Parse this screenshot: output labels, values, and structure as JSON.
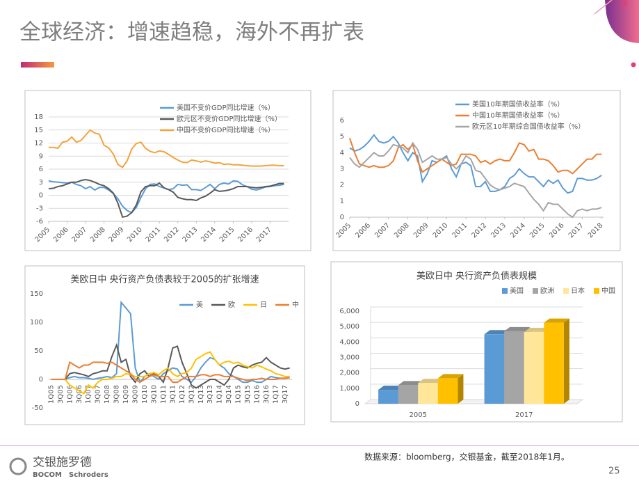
{
  "header": {
    "title": "全球经济：增速趋稳，海外不再扩表"
  },
  "footer": {
    "source": "数据来源：bloomberg，交银基金，截至2018年1月。",
    "page": "25",
    "logo_cn": "交银施罗德",
    "logo_en1": "BOCOM",
    "logo_en2": "Schroders"
  },
  "chart_data": [
    {
      "type": "line",
      "x": [
        2005,
        2005.25,
        2005.5,
        2005.75,
        2006,
        2006.25,
        2006.5,
        2006.75,
        2007,
        2007.25,
        2007.5,
        2007.75,
        2008,
        2008.25,
        2008.5,
        2008.75,
        2009,
        2009.25,
        2009.5,
        2009.75,
        2010,
        2010.25,
        2010.5,
        2010.75,
        2011,
        2011.25,
        2011.5,
        2011.75,
        2012,
        2012.25,
        2012.5,
        2012.75,
        2013,
        2013.25,
        2013.5,
        2013.75,
        2014,
        2014.25,
        2014.5,
        2014.75,
        2015,
        2015.25,
        2015.5,
        2015.75,
        2016,
        2016.25,
        2016.5,
        2016.75,
        2017,
        2017.25,
        2017.5,
        2017.75
      ],
      "xlim": [
        2005,
        2018
      ],
      "xticks": [
        2005,
        2006,
        2007,
        2008,
        2009,
        2010,
        2011,
        2012,
        2013,
        2014,
        2015,
        2016,
        2017
      ],
      "ylim": [
        -6,
        18
      ],
      "yticks": [
        -6,
        -3,
        0,
        3,
        6,
        9,
        12,
        15,
        18
      ],
      "grid": true,
      "series": [
        {
          "name": "美国不变价GDP同比增速（%）",
          "color": "#5b9bd5",
          "values": [
            3.3,
            3.1,
            3.0,
            2.9,
            2.8,
            3.0,
            2.5,
            2.2,
            1.5,
            2.0,
            1.2,
            1.8,
            1.8,
            1.2,
            0.4,
            -0.8,
            -2.5,
            -3.5,
            -4.0,
            -2.8,
            -0.5,
            1.5,
            2.5,
            2.6,
            2.0,
            1.7,
            1.3,
            1.5,
            2.5,
            2.3,
            2.4,
            1.3,
            1.3,
            1.1,
            1.8,
            2.5,
            1.5,
            2.5,
            2.8,
            2.6,
            3.3,
            3.2,
            2.4,
            2.0,
            1.4,
            1.2,
            1.5,
            1.9,
            2.0,
            2.2,
            2.3,
            2.5
          ]
        },
        {
          "name": "欧元区不变价GDP同比增速（%）",
          "color": "#595959",
          "values": [
            1.5,
            1.6,
            2.0,
            2.2,
            2.6,
            3.0,
            3.0,
            3.4,
            3.6,
            3.4,
            3.0,
            2.5,
            2.2,
            1.5,
            0.5,
            -1.8,
            -5.0,
            -4.8,
            -4.0,
            -2.2,
            0.8,
            2.0,
            2.2,
            2.2,
            2.8,
            1.7,
            1.3,
            0.7,
            -0.5,
            -0.8,
            -1.0,
            -1.0,
            -1.2,
            -0.6,
            -0.2,
            0.5,
            1.3,
            0.9,
            1.0,
            1.2,
            1.5,
            2.0,
            2.0,
            2.0,
            1.8,
            1.7,
            1.8,
            2.0,
            2.1,
            2.4,
            2.7,
            2.7
          ]
        },
        {
          "name": "中国不变价GDP同比增速（%）",
          "color": "#f4a23c",
          "values": [
            11.0,
            11.0,
            10.8,
            12.2,
            12.4,
            13.4,
            12.2,
            12.6,
            13.8,
            15.0,
            14.3,
            14.0,
            11.5,
            10.9,
            9.5,
            7.1,
            6.4,
            7.9,
            10.6,
            11.9,
            12.2,
            10.8,
            10.1,
            9.8,
            10.2,
            10.0,
            9.4,
            8.7,
            8.1,
            7.6,
            7.5,
            8.1,
            7.9,
            7.6,
            7.9,
            7.7,
            7.4,
            7.5,
            7.1,
            7.2,
            7.0,
            7.0,
            6.9,
            6.8,
            6.7,
            6.7,
            6.7,
            6.8,
            6.9,
            6.9,
            6.8,
            6.8
          ]
        }
      ]
    },
    {
      "type": "line",
      "x": [
        2005,
        2005.25,
        2005.5,
        2005.75,
        2006,
        2006.25,
        2006.5,
        2006.75,
        2007,
        2007.25,
        2007.5,
        2007.75,
        2008,
        2008.25,
        2008.5,
        2008.75,
        2009,
        2009.25,
        2009.5,
        2009.75,
        2010,
        2010.25,
        2010.5,
        2010.75,
        2011,
        2011.25,
        2011.5,
        2011.75,
        2012,
        2012.25,
        2012.5,
        2012.75,
        2013,
        2013.25,
        2013.5,
        2013.75,
        2014,
        2014.25,
        2014.5,
        2014.75,
        2015,
        2015.25,
        2015.5,
        2015.75,
        2016,
        2016.25,
        2016.5,
        2016.75,
        2017,
        2017.25,
        2017.5,
        2017.75,
        2018
      ],
      "xlim": [
        2005,
        2018.1
      ],
      "xticks": [
        2005,
        2006,
        2007,
        2008,
        2009,
        2010,
        2011,
        2012,
        2013,
        2014,
        2015,
        2016,
        2017,
        2018
      ],
      "ylim": [
        0,
        6
      ],
      "yticks": [
        0,
        1,
        2,
        3,
        4,
        5,
        6
      ],
      "grid": false,
      "series": [
        {
          "name": "美国10年期国债收益率（%）",
          "color": "#5b9bd5",
          "values": [
            4.3,
            4.1,
            4.2,
            4.4,
            4.7,
            5.1,
            4.7,
            4.6,
            4.7,
            5.0,
            4.6,
            4.0,
            3.5,
            4.0,
            3.8,
            2.2,
            2.7,
            3.5,
            3.4,
            3.6,
            3.8,
            3.0,
            2.5,
            3.3,
            3.4,
            3.2,
            1.9,
            1.9,
            2.2,
            1.6,
            1.6,
            1.7,
            1.9,
            2.4,
            2.6,
            3.0,
            2.7,
            2.5,
            2.5,
            2.2,
            1.9,
            2.3,
            2.1,
            2.3,
            1.8,
            1.5,
            1.6,
            2.4,
            2.4,
            2.3,
            2.3,
            2.4,
            2.6
          ]
        },
        {
          "name": "中国10年期国债收益率（%）",
          "color": "#ed7d31",
          "values": [
            4.9,
            4.0,
            3.3,
            3.2,
            3.1,
            3.2,
            3.1,
            3.1,
            3.2,
            3.5,
            4.3,
            4.5,
            4.2,
            4.5,
            3.5,
            2.8,
            3.0,
            3.2,
            3.4,
            3.6,
            3.4,
            3.2,
            3.3,
            3.9,
            3.9,
            3.9,
            3.8,
            3.4,
            3.5,
            3.3,
            3.5,
            3.6,
            3.5,
            3.5,
            4.0,
            4.6,
            4.5,
            4.1,
            4.2,
            3.6,
            3.6,
            3.5,
            3.2,
            2.8,
            2.9,
            2.9,
            2.7,
            3.0,
            3.3,
            3.6,
            3.6,
            3.9,
            3.9
          ]
        },
        {
          "name": "欧元区10年期综合国债收益率（%）",
          "color": "#a5a5a5",
          "values": [
            3.7,
            3.3,
            3.1,
            3.4,
            3.7,
            4.0,
            3.8,
            3.8,
            4.1,
            4.5,
            4.4,
            4.3,
            4.0,
            4.6,
            4.2,
            3.4,
            3.6,
            3.8,
            3.6,
            3.6,
            3.7,
            3.3,
            3.0,
            3.3,
            3.8,
            3.6,
            2.9,
            2.8,
            2.4,
            2.0,
            1.8,
            1.7,
            1.8,
            1.9,
            2.1,
            2.0,
            1.9,
            1.5,
            1.1,
            0.8,
            0.4,
            0.9,
            0.8,
            0.8,
            0.5,
            0.2,
            0.0,
            0.4,
            0.5,
            0.4,
            0.5,
            0.5,
            0.6
          ]
        }
      ]
    },
    {
      "type": "line",
      "title": "美欧日中 央行资产负债表较于2005的扩张增速",
      "categories": [
        "1Q05",
        null,
        "3Q05",
        null,
        "1Q06",
        null,
        "3Q06",
        null,
        "1Q07",
        null,
        "3Q07",
        null,
        "1Q08",
        null,
        "3Q08",
        null,
        "1Q09",
        null,
        "3Q09",
        null,
        "1Q10",
        null,
        "3Q10",
        null,
        "1Q11",
        null,
        "3Q11",
        null,
        "1Q12",
        null,
        "3Q12",
        null,
        "1Q13",
        null,
        "3Q13",
        null,
        "1Q14",
        null,
        "3Q14",
        null,
        "1Q15",
        null,
        "3Q15",
        null,
        "1Q16",
        null,
        "3Q16",
        null,
        "1Q17",
        null,
        "3Q17",
        null
      ],
      "ylim": [
        -50,
        150
      ],
      "yticks": [
        -50,
        0,
        50,
        100,
        150
      ],
      "grid": false,
      "series": [
        {
          "name": "美",
          "color": "#5b9bd5",
          "values": [
            0,
            0,
            0,
            0,
            3,
            5,
            3,
            3,
            2,
            0,
            2,
            3,
            5,
            3,
            10,
            135,
            125,
            115,
            20,
            -5,
            5,
            10,
            5,
            0,
            10,
            15,
            20,
            18,
            5,
            0,
            -5,
            5,
            20,
            30,
            38,
            35,
            25,
            20,
            10,
            5,
            0,
            -5,
            -5,
            -2,
            -5,
            -5,
            0,
            5,
            3,
            2,
            2,
            3
          ]
        },
        {
          "name": "欧",
          "color": "#595959",
          "values": [
            0,
            0,
            0,
            0,
            10,
            12,
            10,
            8,
            5,
            10,
            12,
            15,
            15,
            40,
            60,
            30,
            35,
            5,
            -5,
            10,
            15,
            5,
            10,
            5,
            -5,
            20,
            55,
            58,
            30,
            10,
            -10,
            -15,
            -10,
            -5,
            0,
            0,
            -5,
            -10,
            0,
            20,
            25,
            22,
            20,
            25,
            28,
            30,
            38,
            30,
            25,
            20,
            18,
            20
          ]
        },
        {
          "name": "日",
          "color": "#ffc000",
          "values": [
            0,
            0,
            0,
            0,
            -10,
            -15,
            -20,
            -25,
            -10,
            -15,
            -5,
            0,
            0,
            2,
            5,
            5,
            10,
            8,
            5,
            5,
            5,
            10,
            12,
            8,
            15,
            20,
            10,
            5,
            10,
            12,
            20,
            35,
            40,
            45,
            48,
            35,
            25,
            30,
            32,
            28,
            30,
            25,
            22,
            20,
            25,
            22,
            18,
            15,
            10,
            8,
            5,
            5
          ]
        },
        {
          "name": "中",
          "color": "#ed7d31",
          "values": [
            0,
            0,
            0,
            0,
            30,
            25,
            20,
            25,
            25,
            30,
            30,
            30,
            28,
            30,
            25,
            20,
            15,
            10,
            0,
            -5,
            0,
            5,
            8,
            5,
            5,
            5,
            -5,
            -5,
            0,
            5,
            5,
            5,
            8,
            8,
            5,
            8,
            8,
            5,
            5,
            5,
            2,
            0,
            -2,
            0,
            0,
            2,
            0,
            0,
            0,
            2,
            2,
            3
          ]
        }
      ]
    },
    {
      "type": "bar3d",
      "title": "美欧日中 央行资产负债表规模",
      "categories": [
        "2005",
        "2017"
      ],
      "ylim": [
        0,
        6000
      ],
      "yticks": [
        0,
        {
          "value": 1000,
          "label": "1,000"
        },
        {
          "value": 2000,
          "label": "2,000"
        },
        {
          "value": 3000,
          "label": "3,000"
        },
        {
          "value": 4000,
          "label": "4,000"
        },
        {
          "value": 5000,
          "label": "5,000"
        },
        {
          "value": 6000,
          "label": "6,000"
        }
      ],
      "grid": true,
      "series": [
        {
          "name": "美国",
          "color": "#5b9bd5",
          "values": [
            900,
            4500
          ]
        },
        {
          "name": "欧洲",
          "color": "#a5a5a5",
          "values": [
            1200,
            4700
          ]
        },
        {
          "name": "日本",
          "color": "#ffe699",
          "values": [
            1350,
            4650
          ]
        },
        {
          "name": "中国",
          "color": "#ffc000",
          "values": [
            1650,
            5250
          ]
        }
      ]
    }
  ]
}
